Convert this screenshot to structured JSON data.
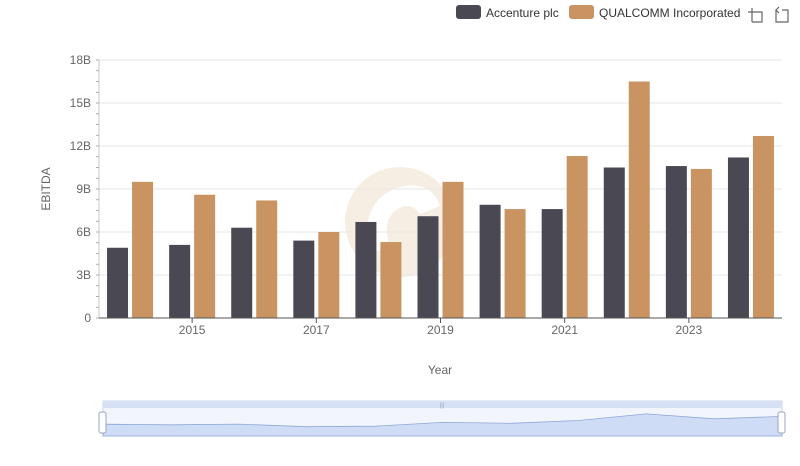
{
  "toolbar": {
    "zoom_icon": "crosshair-zoom-icon",
    "reset_icon": "zoom-reset-icon"
  },
  "colors": {
    "accenture": "#4a4953",
    "qualcomm": "#c99461",
    "grid": "#e6e6e6",
    "axis": "#555555",
    "zoom_fill": "#d7e2f7",
    "zoom_border": "#aebfe0",
    "watermark": "#f5ebe0"
  },
  "chart_data": {
    "type": "bar",
    "title": "",
    "xlabel": "Year",
    "ylabel": "EBITDA",
    "ylim": [
      0,
      18
    ],
    "y_ticks": [
      "0",
      "3B",
      "6B",
      "9B",
      "12B",
      "15B",
      "18B"
    ],
    "x_tick_labels": [
      "2015",
      "2017",
      "2019",
      "2021",
      "2023"
    ],
    "categories": [
      "2014",
      "2015",
      "2016",
      "2017",
      "2018",
      "2019",
      "2020",
      "2021",
      "2022",
      "2023",
      "2024"
    ],
    "series": [
      {
        "name": "Accenture plc",
        "values": [
          4.9,
          5.1,
          6.3,
          5.4,
          6.7,
          7.1,
          7.9,
          7.6,
          10.5,
          10.6,
          11.2
        ]
      },
      {
        "name": "QUALCOMM Incorporated",
        "values": [
          9.5,
          8.6,
          8.2,
          6.0,
          5.3,
          9.5,
          7.6,
          11.3,
          16.5,
          10.4,
          12.7
        ]
      }
    ],
    "legend_position": "top-right",
    "grid": true
  }
}
